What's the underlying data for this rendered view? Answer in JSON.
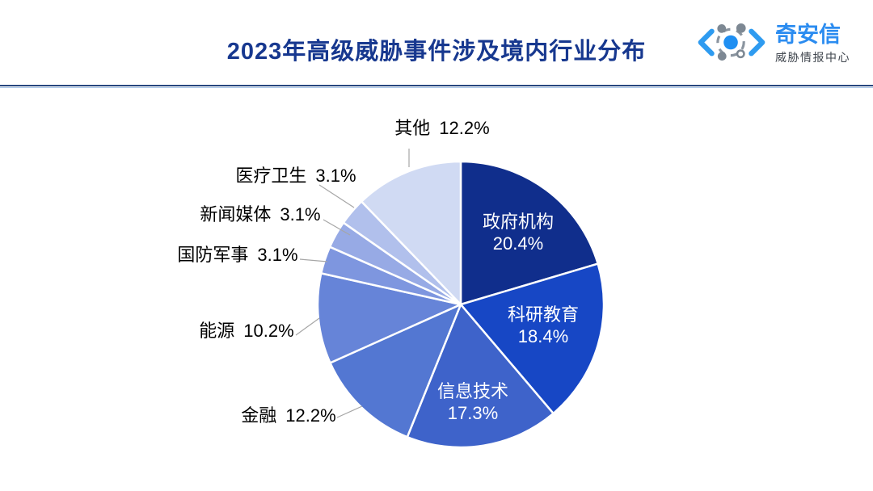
{
  "header": {
    "title": "2023年高级威胁事件涉及境内行业分布",
    "title_color": "#17388F",
    "divider_colors": {
      "main": "#27477F",
      "light": "#A9C5E8"
    },
    "logo": {
      "icon": "qianxin-eye-logo",
      "brand": "奇安信",
      "brand_color": "#2B8CF0",
      "subtitle": "威胁情报中心",
      "subtitle_color": "#3F454D"
    }
  },
  "chart_data": {
    "type": "pie",
    "title": "2023年高级威胁事件涉及境内行业分布",
    "direction": "clockwise",
    "start_angle_deg": 0,
    "legend": "none",
    "categories": [
      "政府机构",
      "科研教育",
      "信息技术",
      "金融",
      "能源",
      "国防军事",
      "新闻媒体",
      "医疗卫生",
      "其他"
    ],
    "values": [
      20.4,
      18.4,
      17.3,
      12.2,
      10.2,
      3.1,
      3.1,
      3.1,
      12.2
    ],
    "percent_labels": [
      "20.4%",
      "18.4%",
      "17.3%",
      "12.2%",
      "10.2%",
      "3.1%",
      "3.1%",
      "3.1%",
      "12.2%"
    ],
    "slice_ids": [
      "government",
      "research-education",
      "information-technology",
      "finance",
      "energy",
      "defense-military",
      "news-media",
      "healthcare",
      "other"
    ],
    "colors": [
      "#102E8C",
      "#1747C5",
      "#3E63CA",
      "#5377D2",
      "#6684D8",
      "#7E96DF",
      "#97AAE5",
      "#B1C0EC",
      "#D0DAF3"
    ],
    "label_placement": [
      "inside",
      "inside",
      "inside",
      "outside",
      "outside",
      "outside",
      "outside",
      "outside",
      "outside"
    ],
    "inside_label_color": "#FFFFFF",
    "outside_label_color": "#000000",
    "leader_line_color": "#A6A6A6"
  }
}
